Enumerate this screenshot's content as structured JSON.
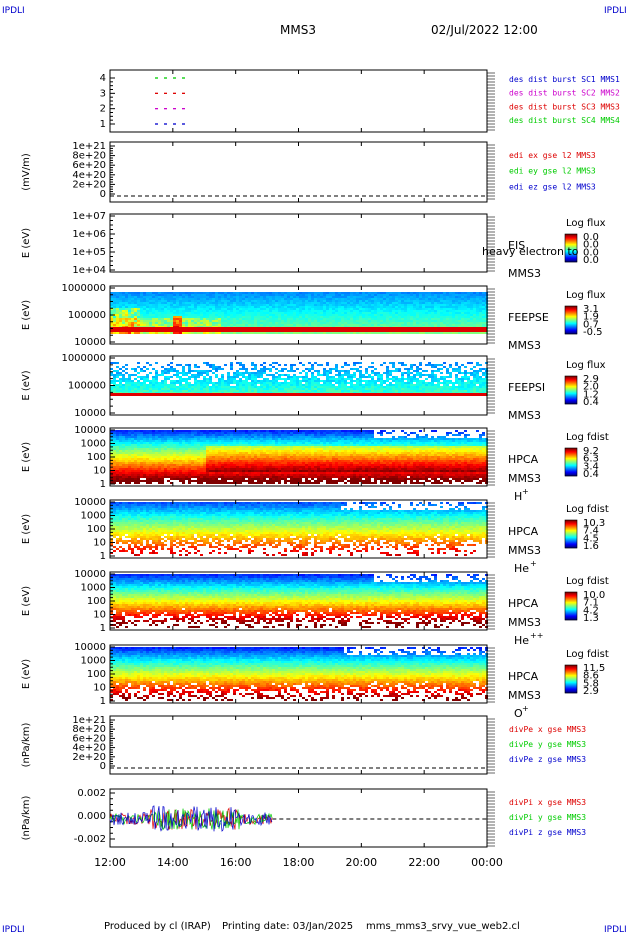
{
  "header": {
    "corner_left": "IPDLI",
    "corner_right": "IPDLI",
    "spacecraft": "MMS3",
    "datetime": "02/Jul/2022 12:00"
  },
  "footer": {
    "corner_left": "IPDLI",
    "corner_right": "IPDLI",
    "credit": "Produced by cl (IRAP)",
    "printing_date": "Printing date: 03/Jan/2025",
    "file": "mms_mms3_srvy_vue_web2.cl"
  },
  "colors": {
    "blue": "#0000cc",
    "magenta": "#cc00cc",
    "red": "#dd0000",
    "green": "#00cc00"
  },
  "chart_data": [
    {
      "type": "scatter",
      "panel": "burst",
      "yticks": [
        "4",
        "3",
        "2",
        "1"
      ],
      "legend": [
        {
          "label": "des dist burst SC1 MMS1",
          "color": "#0000cc"
        },
        {
          "label": "des dist burst SC2 MMS2",
          "color": "#cc00cc"
        },
        {
          "label": "des dist burst SC3 MMS3",
          "color": "#dd0000"
        },
        {
          "label": "des dist burst SC4 MMS4",
          "color": "#00cc00"
        }
      ]
    },
    {
      "type": "line",
      "panel": "edi",
      "ylabel": "(mV/m)",
      "yticks": [
        "1e+21",
        "8e+20",
        "6e+20",
        "4e+20",
        "2e+20",
        "0"
      ],
      "legend": [
        {
          "label": "edi ex gse l2 MMS3",
          "color": "#dd0000"
        },
        {
          "label": "edi ey gse l2 MMS3",
          "color": "#00cc00"
        },
        {
          "label": "edi ez gse l2 MMS3",
          "color": "#0000cc"
        }
      ]
    },
    {
      "type": "heatmap",
      "panel": "eis",
      "ylabel": "E (eV)",
      "yticks": [
        "1e+07",
        "1e+06",
        "1e+05",
        "1e+04"
      ],
      "labels": [
        "EIS",
        "MMS3"
      ],
      "overlay_text": "heavy electron to",
      "colorbar_title": "Log flux",
      "colorbar_ticks": [
        "0.0",
        "0.0",
        "0.0",
        "0.0"
      ]
    },
    {
      "type": "heatmap",
      "panel": "feepse",
      "ylabel": "E (eV)",
      "yticks": [
        "1000000",
        "100000",
        "10000"
      ],
      "labels": [
        "FEEPSE",
        "MMS3"
      ],
      "colorbar_title": "Log flux",
      "colorbar_ticks": [
        "3.1",
        "1.9",
        "0.7",
        "-0.5"
      ]
    },
    {
      "type": "heatmap",
      "panel": "feepsi",
      "ylabel": "E (eV)",
      "yticks": [
        "1000000",
        "100000",
        "10000"
      ],
      "labels": [
        "FEEPSI",
        "MMS3"
      ],
      "colorbar_title": "Log flux",
      "colorbar_ticks": [
        "2.9",
        "2.0",
        "1.2",
        "0.4"
      ]
    },
    {
      "type": "heatmap",
      "panel": "hpca_h",
      "ylabel": "E (eV)",
      "yticks": [
        "10000",
        "1000",
        "100",
        "10",
        "1"
      ],
      "labels": [
        "HPCA",
        "MMS3",
        "H",
        "+"
      ],
      "colorbar_title": "Log fdist",
      "colorbar_ticks": [
        "9.2",
        "6.3",
        "3.4",
        "0.4"
      ]
    },
    {
      "type": "heatmap",
      "panel": "hpca_he",
      "ylabel": "E (eV)",
      "yticks": [
        "10000",
        "1000",
        "100",
        "10",
        "1"
      ],
      "labels": [
        "HPCA",
        "MMS3",
        "He",
        "+"
      ],
      "colorbar_title": "Log fdist",
      "colorbar_ticks": [
        "10.3",
        "7.4",
        "4.5",
        "1.6"
      ]
    },
    {
      "type": "heatmap",
      "panel": "hpca_hepp",
      "ylabel": "E (eV)",
      "yticks": [
        "10000",
        "1000",
        "100",
        "10",
        "1"
      ],
      "labels": [
        "HPCA",
        "MMS3",
        "He",
        "++"
      ],
      "colorbar_title": "Log fdist",
      "colorbar_ticks": [
        "10.0",
        "7.1",
        "4.2",
        "1.3"
      ]
    },
    {
      "type": "heatmap",
      "panel": "hpca_o",
      "ylabel": "E (eV)",
      "yticks": [
        "10000",
        "1000",
        "100",
        "10",
        "1"
      ],
      "labels": [
        "HPCA",
        "MMS3",
        "O",
        "+"
      ],
      "colorbar_title": "Log fdist",
      "colorbar_ticks": [
        "11.5",
        "8.6",
        "5.8",
        "2.9"
      ]
    },
    {
      "type": "line",
      "panel": "divpe",
      "ylabel": "(nPa/km)",
      "yticks": [
        "1e+21",
        "8e+20",
        "6e+20",
        "4e+20",
        "2e+20",
        "0"
      ],
      "legend": [
        {
          "label": "divPe x gse MMS3",
          "color": "#dd0000"
        },
        {
          "label": "divPe y gse MMS3",
          "color": "#00cc00"
        },
        {
          "label": "divPe z gse MMS3",
          "color": "#0000cc"
        }
      ]
    },
    {
      "type": "line",
      "panel": "divpi",
      "ylabel": "(nPa/km)",
      "yticks": [
        "0.002",
        "0.000",
        "-0.002"
      ],
      "legend": [
        {
          "label": "divPi x gse MMS3",
          "color": "#dd0000"
        },
        {
          "label": "divPi y gse MMS3",
          "color": "#00cc00"
        },
        {
          "label": "divPi z gse MMS3",
          "color": "#0000cc"
        }
      ],
      "data_end_time": "17:10"
    }
  ],
  "xaxis": {
    "ticks": [
      "12:00",
      "14:00",
      "16:00",
      "18:00",
      "20:00",
      "22:00",
      "00:00"
    ]
  }
}
